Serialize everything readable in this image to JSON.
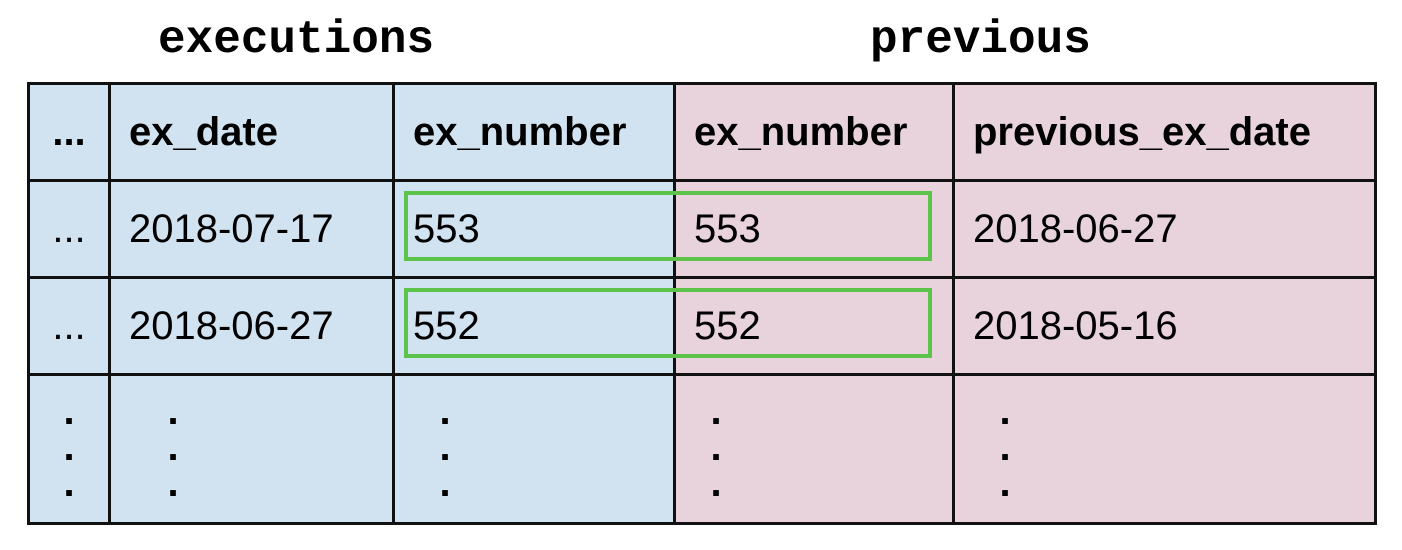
{
  "titles": {
    "left": "executions",
    "right": "previous"
  },
  "header": {
    "ellipsis": "...",
    "ex_date": "ex_date",
    "ex_number_left": "ex_number",
    "ex_number_right": "ex_number",
    "previous_ex_date": "previous_ex_date"
  },
  "rows": [
    {
      "ellipsis": "...",
      "ex_date": "2018-07-17",
      "ex_number_left": "553",
      "ex_number_right": "553",
      "previous_ex_date": "2018-06-27"
    },
    {
      "ellipsis": "...",
      "ex_date": "2018-06-27",
      "ex_number_left": "552",
      "ex_number_right": "552",
      "previous_ex_date": "2018-05-16"
    }
  ],
  "continuation": {
    "dot": "."
  },
  "colors": {
    "executions_fill": "#d1e2f1",
    "previous_fill": "#e8d3dd",
    "match_highlight": "#5dc24a"
  }
}
